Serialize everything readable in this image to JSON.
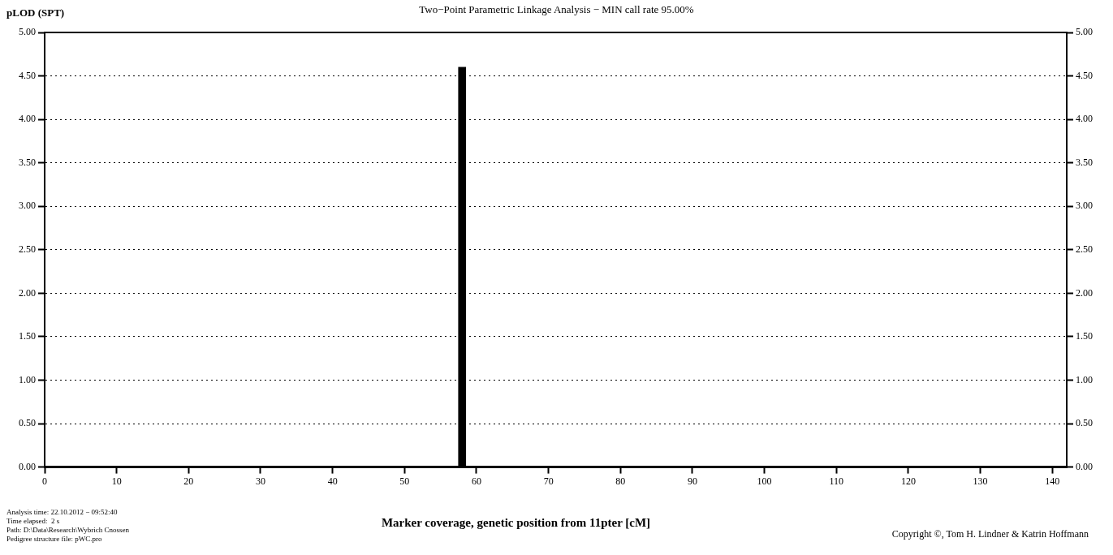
{
  "chart_data": {
    "type": "bar",
    "title": "Two−Point Parametric Linkage Analysis − MIN call rate 95.00%",
    "xlabel": "Marker coverage, genetic position from 11pter [cM]",
    "ylabel": "pLOD (SPT)",
    "x": [
      58
    ],
    "values": [
      4.6
    ],
    "color": "#000000",
    "xlim": [
      0,
      142
    ],
    "xticks": [
      0,
      10,
      20,
      30,
      40,
      50,
      60,
      70,
      80,
      90,
      100,
      110,
      120,
      130,
      140
    ],
    "ylim": [
      0,
      5
    ],
    "yticks": [
      {
        "value": 0,
        "label": "0.00"
      },
      {
        "value": 0.5,
        "label": "0.50"
      },
      {
        "value": 1,
        "label": "1.00"
      },
      {
        "value": 1.5,
        "label": "1.50"
      },
      {
        "value": 2,
        "label": "2.00"
      },
      {
        "value": 2.5,
        "label": "2.50"
      },
      {
        "value": 3,
        "label": "3.00"
      },
      {
        "value": 3.5,
        "label": "3.50"
      },
      {
        "value": 4,
        "label": "4.00"
      },
      {
        "value": 4.5,
        "label": "4.50"
      },
      {
        "value": 5,
        "label": "5.00"
      }
    ],
    "y2lim": [
      0,
      5
    ],
    "y2ticks": [
      {
        "value": 0,
        "label": "0.00"
      },
      {
        "value": 0.5,
        "label": "0.50"
      },
      {
        "value": 1,
        "label": "1.00"
      },
      {
        "value": 1.5,
        "label": "1.50"
      },
      {
        "value": 2,
        "label": "2.00"
      },
      {
        "value": 2.5,
        "label": "2.50"
      },
      {
        "value": 3,
        "label": "3.00"
      },
      {
        "value": 3.5,
        "label": "3.50"
      },
      {
        "value": 4,
        "label": "4.00"
      },
      {
        "value": 4.5,
        "label": "4.50"
      },
      {
        "value": 5,
        "label": "5.00"
      }
    ],
    "grid": "y",
    "legend": false,
    "annotations": [
      "Analysis time: 22.10.2012 − 09:52:40",
      "Time elapsed:  2 s",
      "Path: D:\\Data\\Research\\Wybrich Cnossen",
      "Pedigree structure file: pWC.pro",
      "Copyright ©, Tom H. Lindner & Katrin Hoffmann"
    ]
  }
}
